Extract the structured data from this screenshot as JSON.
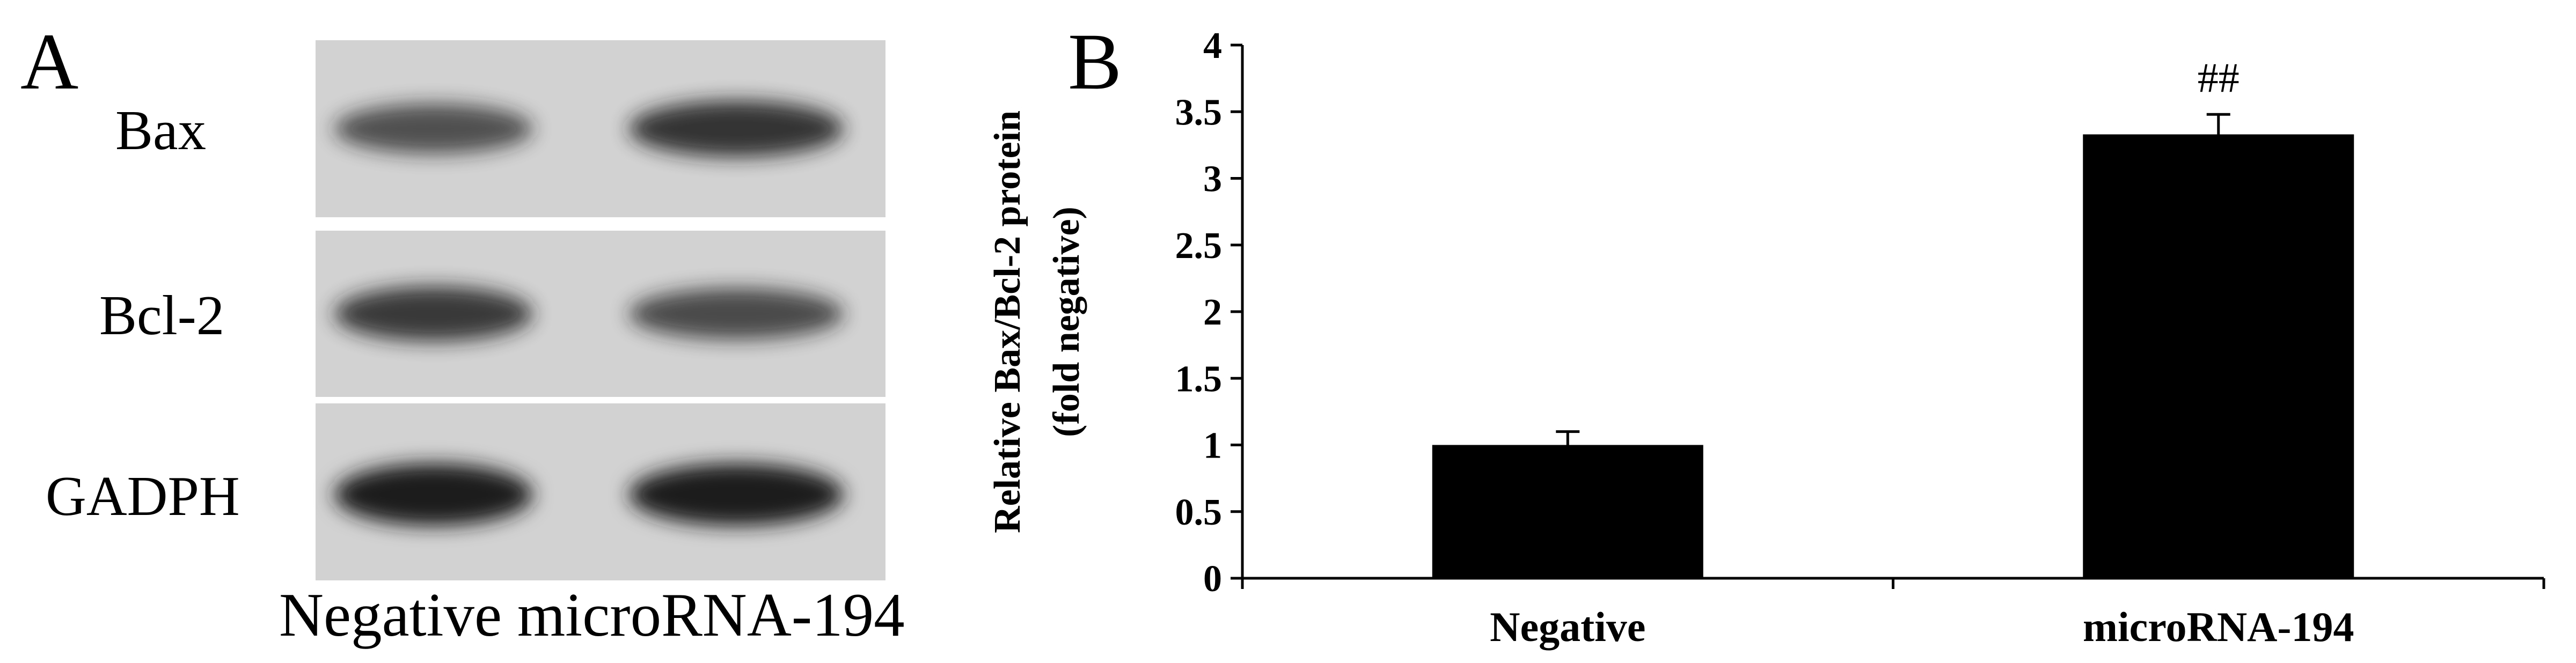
{
  "panel_a": {
    "label": "A",
    "blots": [
      {
        "protein": "Bax",
        "band_intensity": [
          0.62,
          0.82
        ]
      },
      {
        "protein": "Bcl-2",
        "band_intensity": [
          0.78,
          0.66
        ]
      },
      {
        "protein": "GADPH",
        "band_intensity": [
          1.0,
          1.0
        ]
      }
    ],
    "lane_caption": "Negative microRNA-194",
    "colors": {
      "membrane": "#d2d2d2",
      "band": "#1b1b1b"
    }
  },
  "panel_b": {
    "label": "B"
  },
  "chart_data": {
    "type": "bar",
    "categories": [
      "Negative",
      "microRNA-194"
    ],
    "values": [
      1.0,
      3.33
    ],
    "errors": [
      0.1,
      0.15
    ],
    "annotations": [
      "",
      "##"
    ],
    "ylabel_line1": "Relative Bax/Bcl-2 protein",
    "ylabel_line2": "(fold negative)",
    "xlabel": "",
    "ylim": [
      0,
      4
    ],
    "yticks": [
      "0",
      "0.5",
      "1",
      "1.5",
      "2",
      "2.5",
      "3",
      "3.5",
      "4"
    ],
    "grid": false,
    "bar_color": "#000000"
  }
}
